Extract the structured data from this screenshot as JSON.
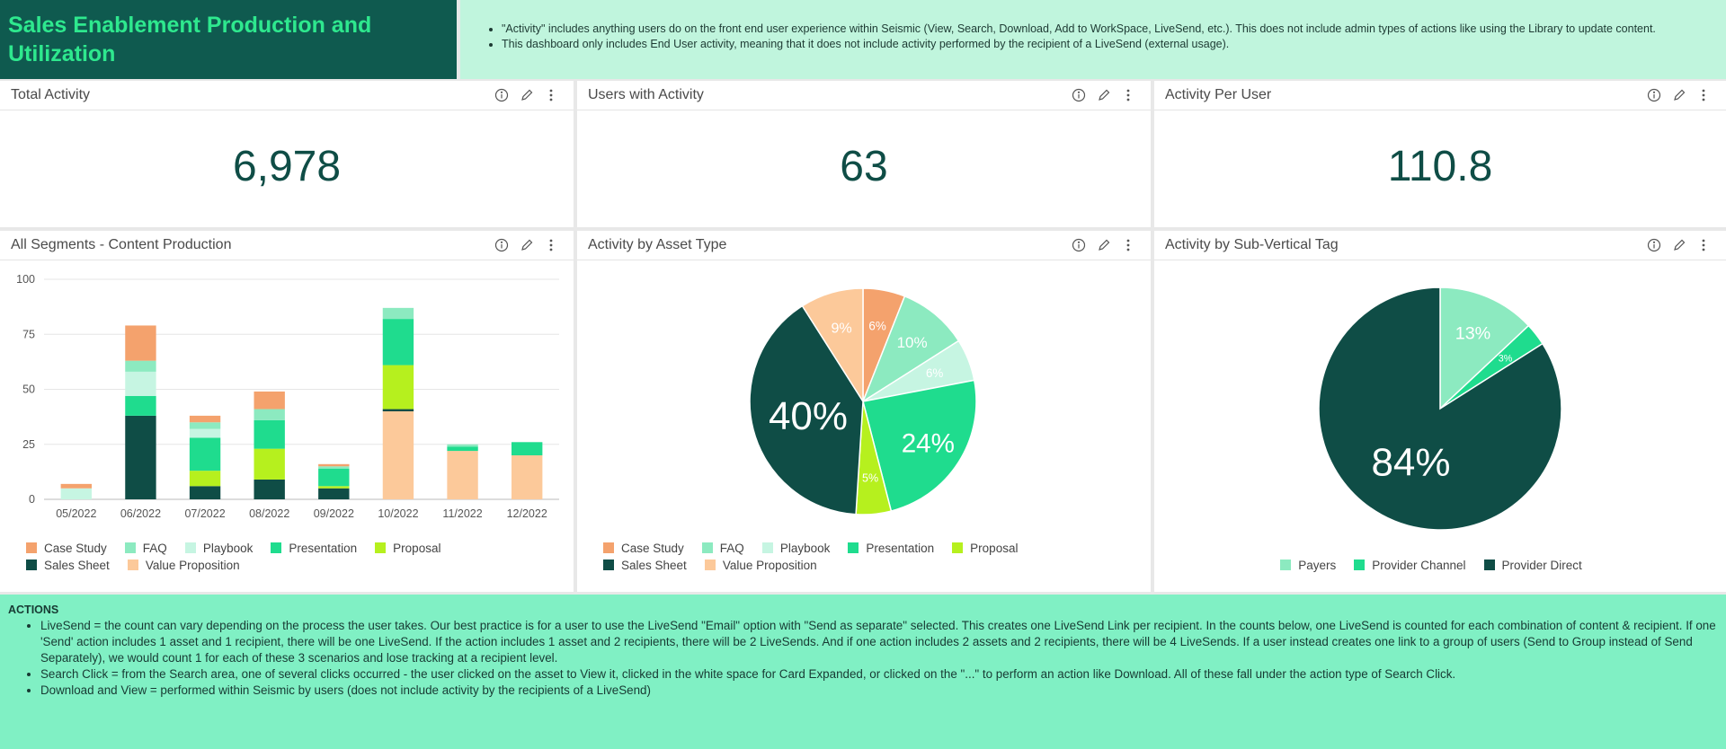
{
  "header": {
    "title": "Sales Enablement Production and Utilization",
    "notes": [
      "\"Activity\" includes anything users do on the front end user experience within Seismic (View, Search, Download, Add to WorkSpace, LiveSend, etc.).  This does not include admin types of actions like using the Library to update content.",
      "This dashboard only includes End User activity, meaning that it does not include activity performed by the recipient of a LiveSend (external usage)."
    ]
  },
  "kpis": [
    {
      "title": "Total Activity",
      "value": "6,978"
    },
    {
      "title": "Users with Activity",
      "value": "63"
    },
    {
      "title": "Activity Per User",
      "value": "110.8"
    }
  ],
  "chart_data": [
    {
      "type": "bar",
      "stacked": true,
      "title": "All Segments - Content Production",
      "categories": [
        "05/2022",
        "06/2022",
        "07/2022",
        "08/2022",
        "09/2022",
        "10/2022",
        "11/2022",
        "12/2022"
      ],
      "series": [
        {
          "name": "Case Study",
          "color": "#f4a26d",
          "values": [
            2,
            16,
            3,
            8,
            1,
            null,
            null,
            null
          ]
        },
        {
          "name": "FAQ",
          "color": "#8ceac0",
          "values": [
            null,
            5,
            3,
            5,
            1,
            5,
            1,
            null
          ]
        },
        {
          "name": "Playbook",
          "color": "#c6f5e2",
          "values": [
            5,
            11,
            4,
            null,
            null,
            null,
            null,
            null
          ]
        },
        {
          "name": "Presentation",
          "color": "#1fdc8e",
          "values": [
            null,
            9,
            15,
            13,
            8,
            21,
            2,
            6
          ]
        },
        {
          "name": "Proposal",
          "color": "#b6f01e",
          "values": [
            null,
            null,
            7,
            14,
            1,
            20,
            null,
            null
          ]
        },
        {
          "name": "Sales Sheet",
          "color": "#0f4d46",
          "values": [
            null,
            38,
            6,
            9,
            5,
            1,
            null,
            null
          ]
        },
        {
          "name": "Value Proposition",
          "color": "#fcc99a",
          "values": [
            null,
            null,
            null,
            null,
            null,
            40,
            22,
            20
          ]
        }
      ],
      "ylim": [
        0,
        100
      ],
      "yticks": [
        0,
        25,
        50,
        75,
        100
      ],
      "grid": true,
      "legend": "bottom"
    },
    {
      "type": "pie",
      "title": "Activity by Asset Type",
      "categories": [
        "Case Study",
        "FAQ",
        "Playbook",
        "Presentation",
        "Proposal",
        "Sales Sheet",
        "Value Proposition"
      ],
      "values": [
        6,
        10,
        6,
        24,
        5,
        40,
        9
      ],
      "value_labels": [
        "6%",
        "10%",
        "6%",
        "24%",
        "5%",
        "40%",
        "9%"
      ],
      "colors": [
        "#f4a26d",
        "#8ceac0",
        "#c6f5e2",
        "#1fdc8e",
        "#b6f01e",
        "#0f4d46",
        "#fcc99a"
      ],
      "legend": "bottom"
    },
    {
      "type": "pie",
      "title": "Activity by Sub-Vertical Tag",
      "categories": [
        "Payers",
        "Provider Channel",
        "Provider Direct"
      ],
      "values": [
        13,
        3,
        84
      ],
      "value_labels": [
        "13%",
        "3%",
        "84%"
      ],
      "colors": [
        "#8ceac0",
        "#1fdc8e",
        "#0f4d46"
      ],
      "legend": "bottom"
    }
  ],
  "actions": {
    "title": "ACTIONS",
    "items": [
      "LiveSend = the count can vary depending on the process the user takes.  Our best practice is for a user to use the LiveSend \"Email\" option with \"Send as separate\" selected.  This creates one LiveSend Link per recipient.  In the counts below, one LiveSend is counted for each combination of content & recipient.  If one 'Send' action includes 1 asset and 1 recipient, there will be one LiveSend.  If the action includes 1 asset and 2 recipients, there will be 2 LiveSends.  And if one action includes 2 assets and 2 recipients, there will be 4 LiveSends.  If a user instead creates one link to a group of users (Send to Group instead of Send Separately), we would count 1 for each of these 3 scenarios and lose tracking at a recipient level.",
      "Search Click = from the Search area, one of several clicks occurred - the user clicked on the asset to View it, clicked in the white space for Card Expanded, or clicked on the \"...\" to perform an action like Download.  All of these fall under the action type of Search Click.",
      "Download and View = performed within Seismic by users (does not include activity by the recipients of a LiveSend)"
    ]
  }
}
